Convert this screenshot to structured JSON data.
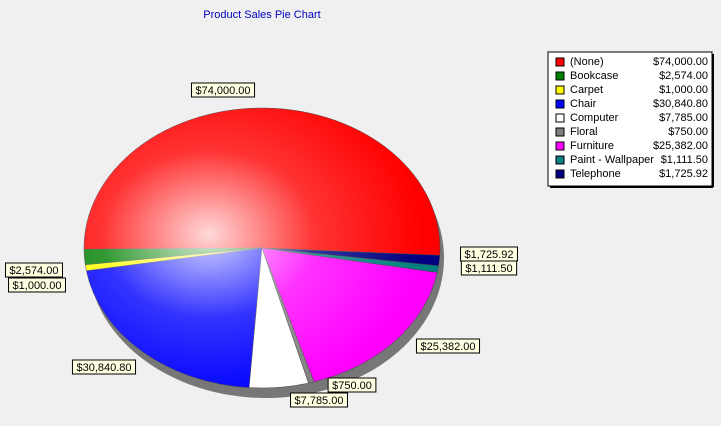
{
  "chart_data": {
    "type": "pie",
    "title": "Product Sales Pie Chart",
    "categories": [
      "(None)",
      "Bookcase",
      "Carpet",
      "Chair",
      "Computer",
      "Floral",
      "Furniture",
      "Paint - Wallpaper",
      "Telephone"
    ],
    "values": [
      74000,
      2574,
      1000,
      30840.8,
      7785,
      750,
      25382,
      1111.5,
      1725.92
    ],
    "value_labels": [
      "$74,000.00",
      "$2,574.00",
      "$1,000.00",
      "$30,840.80",
      "$7,785.00",
      "$750.00",
      "$25,382.00",
      "$1,111.50",
      "$1,725.92"
    ],
    "colors": [
      "#ff0000",
      "#008000",
      "#ffff00",
      "#0000ff",
      "#ffffff",
      "#808080",
      "#ff00ff",
      "#008080",
      "#000080"
    ],
    "legend": "upper right"
  }
}
